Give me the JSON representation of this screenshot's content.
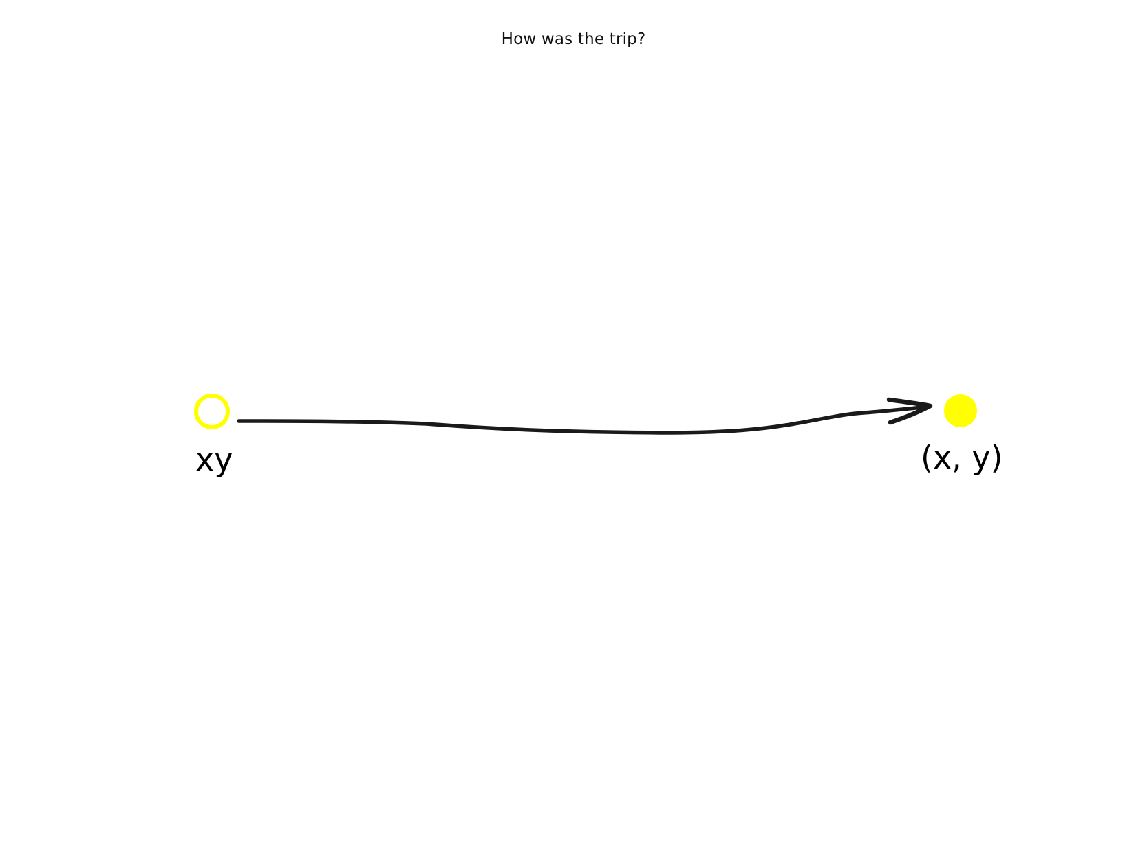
{
  "title": "How was the trip?",
  "start": {
    "label": "xy",
    "marker": "hollow-circle",
    "color": "#ffff00"
  },
  "end": {
    "label": "(x, y)",
    "marker": "filled-circle",
    "color": "#ffff00"
  },
  "arrow": {
    "style": "hand-drawn",
    "color": "#1a1a1a"
  }
}
